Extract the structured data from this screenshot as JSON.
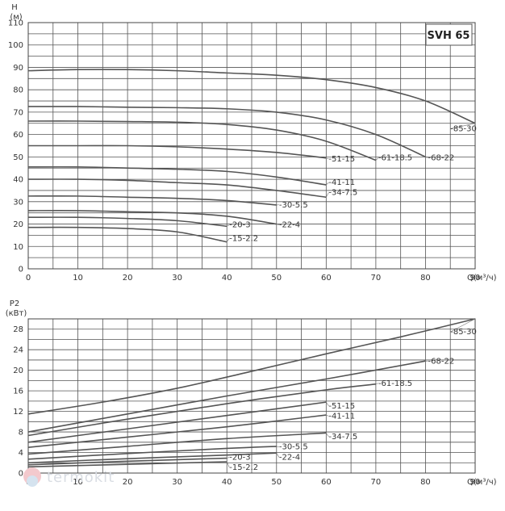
{
  "chart_data": [
    {
      "type": "line",
      "title": "SVH 65",
      "ylabel": "H",
      "yunit": "(м)",
      "xlabel": "Q(м³/ч)",
      "xlim": [
        0,
        90
      ],
      "ylim": [
        0,
        110
      ],
      "xticks": [
        0,
        10,
        20,
        30,
        40,
        50,
        60,
        70,
        80,
        90
      ],
      "yticks": [
        0,
        10,
        20,
        30,
        40,
        50,
        60,
        70,
        80,
        90,
        100,
        110
      ],
      "grid": true,
      "series": [
        {
          "name": "-85-30",
          "x": [
            0,
            10,
            20,
            30,
            40,
            50,
            60,
            70,
            80,
            90
          ],
          "y": [
            88.5,
            89,
            89,
            88.5,
            87.5,
            86.5,
            84.5,
            81,
            75,
            65
          ],
          "label_at": [
            85,
            61.5
          ]
        },
        {
          "name": "-68-22",
          "x": [
            0,
            10,
            20,
            30,
            40,
            50,
            60,
            70,
            80
          ],
          "y": [
            72.5,
            72.5,
            72.2,
            72,
            71.5,
            70,
            66.5,
            60,
            50
          ],
          "label_at": [
            80.5,
            48.5
          ]
        },
        {
          "name": "-61-18.5",
          "x": [
            0,
            10,
            20,
            30,
            40,
            50,
            60,
            70
          ],
          "y": [
            66,
            66,
            65.8,
            65.5,
            64.5,
            62,
            57,
            48.5
          ],
          "label_at": [
            70.5,
            48.5
          ]
        },
        {
          "name": "-51-15",
          "x": [
            0,
            10,
            20,
            30,
            40,
            50,
            60
          ],
          "y": [
            55,
            55,
            55,
            54.5,
            53.5,
            52,
            49.5
          ],
          "label_at": [
            60.5,
            48
          ]
        },
        {
          "name": "-41-11",
          "x": [
            0,
            10,
            20,
            30,
            40,
            50,
            60
          ],
          "y": [
            45.5,
            45.5,
            45,
            44.5,
            43.5,
            41,
            37.5
          ],
          "label_at": [
            60.5,
            37.5
          ]
        },
        {
          "name": "-34-7.5",
          "x": [
            0,
            10,
            20,
            30,
            40,
            50,
            60
          ],
          "y": [
            40,
            40,
            39.5,
            38.5,
            37.5,
            35,
            32
          ],
          "label_at": [
            60.5,
            33
          ]
        },
        {
          "name": "-30-5.5",
          "x": [
            0,
            10,
            20,
            30,
            40,
            50
          ],
          "y": [
            32.5,
            32.5,
            32,
            31.5,
            30.5,
            28.5
          ],
          "label_at": [
            50.5,
            27.5
          ]
        },
        {
          "name": "-22-4",
          "x": [
            0,
            10,
            20,
            30,
            40,
            50
          ],
          "y": [
            26,
            26,
            25.5,
            25,
            23.5,
            20
          ],
          "label_at": [
            50.5,
            18.5
          ]
        },
        {
          "name": "-20-3",
          "x": [
            0,
            10,
            20,
            30,
            40
          ],
          "y": [
            23,
            23,
            22.5,
            21.5,
            19
          ],
          "label_at": [
            40.5,
            18.5
          ]
        },
        {
          "name": "-15-2.2",
          "x": [
            0,
            10,
            20,
            30,
            40
          ],
          "y": [
            18.5,
            18.5,
            18,
            16.5,
            12
          ],
          "label_at": [
            40.5,
            12.5
          ]
        }
      ]
    },
    {
      "type": "line",
      "ylabel": "P2",
      "yunit": "(кВт)",
      "xlabel": "Q(м³/ч)",
      "xlim": [
        0,
        90
      ],
      "ylim": [
        0,
        30
      ],
      "xticks": [
        0,
        10,
        20,
        30,
        40,
        50,
        60,
        70,
        80,
        90
      ],
      "yticks": [
        0,
        4,
        8,
        12,
        16,
        20,
        24,
        28
      ],
      "grid": true,
      "series": [
        {
          "name": "-85-30",
          "x": [
            0,
            15,
            30,
            45,
            60,
            75,
            90
          ],
          "y": [
            11.5,
            13.8,
            16.5,
            19.8,
            23.2,
            26.5,
            30
          ],
          "label_at": [
            85,
            27
          ]
        },
        {
          "name": "-68-22",
          "x": [
            0,
            20,
            40,
            60,
            80
          ],
          "y": [
            8,
            11.5,
            15,
            18.3,
            21.8
          ],
          "label_at": [
            80.5,
            21.3
          ]
        },
        {
          "name": "-61-18.5",
          "x": [
            0,
            20,
            40,
            60,
            70
          ],
          "y": [
            7.3,
            10.5,
            13.5,
            16.2,
            17.3
          ],
          "label_at": [
            70.5,
            17
          ]
        },
        {
          "name": "-51-15",
          "x": [
            0,
            20,
            40,
            60
          ],
          "y": [
            6,
            8.6,
            11.2,
            13.8
          ],
          "label_at": [
            60.5,
            12.6
          ]
        },
        {
          "name": "-41-11",
          "x": [
            0,
            20,
            40,
            60
          ],
          "y": [
            5,
            7,
            9,
            11.3
          ],
          "label_at": [
            60.5,
            10.6
          ]
        },
        {
          "name": "-34-7.5",
          "x": [
            0,
            20,
            40,
            60
          ],
          "y": [
            3.7,
            5.2,
            6.7,
            7.8
          ],
          "label_at": [
            60.5,
            6.6
          ]
        },
        {
          "name": "-30-5.5",
          "x": [
            0,
            20,
            40,
            50
          ],
          "y": [
            2.7,
            3.8,
            4.8,
            5.2
          ],
          "label_at": [
            50.5,
            4.6
          ]
        },
        {
          "name": "-22-4",
          "x": [
            0,
            20,
            40,
            50
          ],
          "y": [
            2,
            2.8,
            3.5,
            3.9
          ],
          "label_at": [
            50.5,
            2.6
          ]
        },
        {
          "name": "-20-3",
          "x": [
            0,
            20,
            40
          ],
          "y": [
            1.6,
            2.3,
            2.9
          ],
          "label_at": [
            40.5,
            2.6
          ]
        },
        {
          "name": "-15-2.2",
          "x": [
            0,
            20,
            40
          ],
          "y": [
            1.2,
            1.7,
            2.2
          ],
          "label_at": [
            40.5,
            0.6
          ]
        }
      ]
    }
  ],
  "watermark": "termokit"
}
